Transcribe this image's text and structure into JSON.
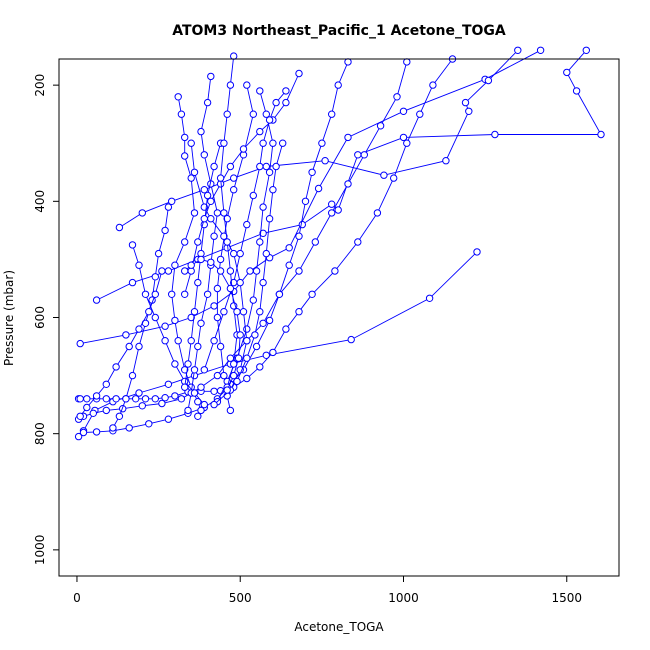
{
  "chart_data": {
    "type": "line",
    "title": "ATOM3 Northeast_Pacific_1 Acetone_TOGA",
    "xlabel": "Acetone_TOGA",
    "ylabel": "Pressure (mbar)",
    "xlim": [
      -55,
      1660
    ],
    "ylim": [
      1045,
      155
    ],
    "y_axis_reversed": true,
    "xticks": [
      0,
      500,
      1000,
      1500
    ],
    "yticks": [
      200,
      400,
      600,
      800,
      1000
    ],
    "grid": false,
    "legend": "none",
    "colors": {
      "series": "#0000ff",
      "axis": "#000000",
      "background": "#ffffff"
    },
    "marker": "open-circle",
    "series": [
      {
        "points": [
          [
            5,
            805
          ],
          [
            20,
            795
          ],
          [
            55,
            760
          ],
          [
            110,
            745
          ],
          [
            190,
            730
          ],
          [
            280,
            715
          ],
          [
            360,
            700
          ],
          [
            470,
            680
          ],
          [
            580,
            665
          ],
          [
            840,
            638
          ],
          [
            1080,
            567
          ],
          [
            1225,
            487
          ]
        ]
      },
      {
        "points": [
          [
            10,
            645
          ],
          [
            150,
            630
          ],
          [
            270,
            615
          ],
          [
            350,
            600
          ],
          [
            420,
            580
          ],
          [
            480,
            555
          ],
          [
            530,
            520
          ],
          [
            590,
            497
          ],
          [
            650,
            480
          ],
          [
            740,
            378
          ],
          [
            830,
            290
          ],
          [
            1000,
            245
          ],
          [
            1250,
            190
          ],
          [
            1420,
            140
          ]
        ]
      },
      {
        "points": [
          [
            130,
            445
          ],
          [
            200,
            420
          ],
          [
            290,
            400
          ],
          [
            390,
            380
          ],
          [
            480,
            360
          ],
          [
            580,
            340
          ],
          [
            760,
            330
          ],
          [
            940,
            355
          ],
          [
            1130,
            330
          ],
          [
            1200,
            245
          ],
          [
            1190,
            230
          ],
          [
            1260,
            192
          ],
          [
            1350,
            140
          ]
        ]
      },
      {
        "points": [
          [
            60,
            570
          ],
          [
            170,
            540
          ],
          [
            280,
            520
          ],
          [
            370,
            500
          ],
          [
            460,
            480
          ],
          [
            570,
            455
          ],
          [
            690,
            440
          ],
          [
            780,
            405
          ],
          [
            800,
            415
          ],
          [
            860,
            320
          ],
          [
            1000,
            290
          ],
          [
            1280,
            285
          ],
          [
            1605,
            285
          ],
          [
            1530,
            210
          ],
          [
            1500,
            178
          ],
          [
            1560,
            140
          ]
        ]
      },
      {
        "points": [
          [
            5,
            740
          ],
          [
            10,
            740
          ],
          [
            30,
            740
          ],
          [
            60,
            740
          ],
          [
            90,
            740
          ],
          [
            120,
            740
          ],
          [
            150,
            740
          ],
          [
            180,
            740
          ],
          [
            210,
            740
          ],
          [
            240,
            740
          ],
          [
            270,
            738
          ],
          [
            300,
            735
          ],
          [
            340,
            728
          ],
          [
            380,
            727
          ],
          [
            420,
            727
          ],
          [
            440,
            726
          ],
          [
            480,
            720
          ],
          [
            520,
            705
          ],
          [
            560,
            685
          ],
          [
            600,
            660
          ],
          [
            640,
            620
          ],
          [
            680,
            590
          ],
          [
            720,
            560
          ],
          [
            790,
            520
          ],
          [
            860,
            470
          ],
          [
            920,
            420
          ],
          [
            970,
            360
          ],
          [
            1010,
            300
          ],
          [
            1050,
            250
          ],
          [
            1090,
            200
          ],
          [
            1150,
            155
          ]
        ]
      },
      {
        "points": [
          [
            5,
            775
          ],
          [
            20,
            770
          ],
          [
            50,
            765
          ],
          [
            90,
            760
          ],
          [
            140,
            757
          ],
          [
            200,
            752
          ],
          [
            260,
            748
          ],
          [
            320,
            740
          ],
          [
            380,
            720
          ],
          [
            430,
            700
          ],
          [
            470,
            670
          ],
          [
            520,
            640
          ],
          [
            570,
            610
          ],
          [
            620,
            560
          ],
          [
            680,
            520
          ],
          [
            730,
            470
          ],
          [
            780,
            420
          ],
          [
            830,
            370
          ],
          [
            880,
            320
          ],
          [
            930,
            270
          ],
          [
            980,
            220
          ],
          [
            1010,
            160
          ]
        ]
      },
      {
        "points": [
          [
            20,
            798
          ],
          [
            60,
            797
          ],
          [
            110,
            795
          ],
          [
            160,
            790
          ],
          [
            220,
            783
          ],
          [
            280,
            775
          ],
          [
            340,
            765
          ],
          [
            390,
            755
          ],
          [
            430,
            740
          ],
          [
            470,
            715
          ],
          [
            510,
            690
          ],
          [
            550,
            650
          ],
          [
            590,
            605
          ],
          [
            620,
            560
          ],
          [
            650,
            510
          ],
          [
            680,
            460
          ],
          [
            700,
            400
          ],
          [
            720,
            350
          ],
          [
            750,
            300
          ],
          [
            780,
            250
          ],
          [
            800,
            200
          ],
          [
            830,
            160
          ]
        ]
      },
      {
        "points": [
          [
            310,
            220
          ],
          [
            320,
            250
          ],
          [
            330,
            290
          ],
          [
            330,
            322
          ],
          [
            350,
            360
          ],
          [
            360,
            420
          ],
          [
            330,
            470
          ],
          [
            300,
            510
          ],
          [
            290,
            560
          ],
          [
            300,
            605
          ],
          [
            310,
            640
          ],
          [
            330,
            690
          ],
          [
            350,
            720
          ],
          [
            370,
            745
          ],
          [
            380,
            760
          ],
          [
            370,
            770
          ]
        ]
      },
      {
        "points": [
          [
            410,
            185
          ],
          [
            400,
            230
          ],
          [
            380,
            280
          ],
          [
            390,
            320
          ],
          [
            410,
            370
          ],
          [
            430,
            420
          ],
          [
            420,
            460
          ],
          [
            410,
            510
          ],
          [
            400,
            560
          ],
          [
            380,
            610
          ],
          [
            370,
            650
          ],
          [
            360,
            690
          ],
          [
            350,
            730
          ],
          [
            340,
            760
          ]
        ]
      },
      {
        "points": [
          [
            520,
            200
          ],
          [
            540,
            250
          ],
          [
            510,
            320
          ],
          [
            480,
            380
          ],
          [
            460,
            430
          ],
          [
            440,
            500
          ],
          [
            430,
            550
          ],
          [
            430,
            600
          ],
          [
            440,
            650
          ],
          [
            450,
            700
          ],
          [
            460,
            735
          ],
          [
            470,
            760
          ]
        ]
      },
      {
        "points": [
          [
            560,
            210
          ],
          [
            580,
            250
          ],
          [
            600,
            300
          ],
          [
            590,
            350
          ],
          [
            570,
            410
          ],
          [
            560,
            470
          ],
          [
            550,
            520
          ],
          [
            540,
            570
          ],
          [
            520,
            620
          ],
          [
            490,
            670
          ],
          [
            460,
            710
          ],
          [
            430,
            745
          ]
        ]
      },
      {
        "points": [
          [
            350,
            300
          ],
          [
            360,
            350
          ],
          [
            390,
            410
          ],
          [
            410,
            430
          ],
          [
            450,
            460
          ],
          [
            480,
            490
          ],
          [
            500,
            540
          ],
          [
            510,
            590
          ],
          [
            520,
            640
          ],
          [
            500,
            690
          ],
          [
            470,
            725
          ],
          [
            420,
            750
          ]
        ]
      },
      {
        "points": [
          [
            280,
            410
          ],
          [
            270,
            450
          ],
          [
            250,
            490
          ],
          [
            240,
            530
          ],
          [
            230,
            570
          ],
          [
            210,
            610
          ],
          [
            190,
            650
          ],
          [
            170,
            700
          ],
          [
            150,
            740
          ],
          [
            130,
            770
          ],
          [
            110,
            790
          ]
        ]
      },
      {
        "points": [
          [
            170,
            475
          ],
          [
            190,
            510
          ],
          [
            210,
            560
          ],
          [
            240,
            600
          ],
          [
            270,
            640
          ],
          [
            300,
            680
          ],
          [
            330,
            710
          ],
          [
            360,
            730
          ],
          [
            390,
            750
          ]
        ]
      },
      {
        "points": [
          [
            440,
            300
          ],
          [
            420,
            340
          ],
          [
            400,
            390
          ],
          [
            390,
            440
          ],
          [
            380,
            490
          ],
          [
            370,
            540
          ],
          [
            360,
            590
          ],
          [
            350,
            640
          ],
          [
            340,
            680
          ],
          [
            330,
            720
          ]
        ]
      },
      {
        "points": [
          [
            630,
            300
          ],
          [
            610,
            340
          ],
          [
            600,
            380
          ],
          [
            590,
            430
          ],
          [
            580,
            490
          ],
          [
            570,
            540
          ],
          [
            560,
            590
          ],
          [
            545,
            630
          ],
          [
            520,
            670
          ],
          [
            490,
            710
          ]
        ]
      },
      {
        "points": [
          [
            680,
            180
          ],
          [
            640,
            230
          ],
          [
            600,
            260
          ],
          [
            560,
            280
          ],
          [
            510,
            310
          ],
          [
            470,
            340
          ],
          [
            440,
            370
          ],
          [
            410,
            400
          ],
          [
            390,
            430
          ],
          [
            370,
            470
          ],
          [
            350,
            520
          ],
          [
            330,
            560
          ]
        ]
      },
      {
        "points": [
          [
            260,
            520
          ],
          [
            240,
            560
          ],
          [
            220,
            590
          ],
          [
            190,
            620
          ],
          [
            160,
            650
          ],
          [
            120,
            685
          ],
          [
            90,
            715
          ],
          [
            60,
            735
          ],
          [
            30,
            755
          ],
          [
            10,
            770
          ]
        ]
      },
      {
        "points": [
          [
            640,
            210
          ],
          [
            610,
            230
          ],
          [
            590,
            260
          ],
          [
            570,
            300
          ],
          [
            560,
            340
          ],
          [
            540,
            390
          ],
          [
            520,
            440
          ],
          [
            500,
            490
          ],
          [
            480,
            540
          ],
          [
            450,
            590
          ],
          [
            420,
            640
          ],
          [
            390,
            690
          ]
        ]
      },
      {
        "points": [
          [
            480,
            150
          ],
          [
            470,
            200
          ],
          [
            460,
            250
          ],
          [
            450,
            300
          ],
          [
            440,
            360
          ],
          [
            450,
            420
          ],
          [
            460,
            470
          ],
          [
            470,
            520
          ],
          [
            480,
            580
          ],
          [
            490,
            630
          ],
          [
            480,
            680
          ],
          [
            460,
            720
          ]
        ]
      },
      {
        "points": [
          [
            330,
            520
          ],
          [
            350,
            510
          ],
          [
            380,
            500
          ],
          [
            410,
            505
          ],
          [
            440,
            520
          ],
          [
            470,
            550
          ],
          [
            490,
            590
          ],
          [
            500,
            630
          ],
          [
            495,
            670
          ],
          [
            480,
            700
          ],
          [
            460,
            725
          ]
        ]
      }
    ]
  }
}
